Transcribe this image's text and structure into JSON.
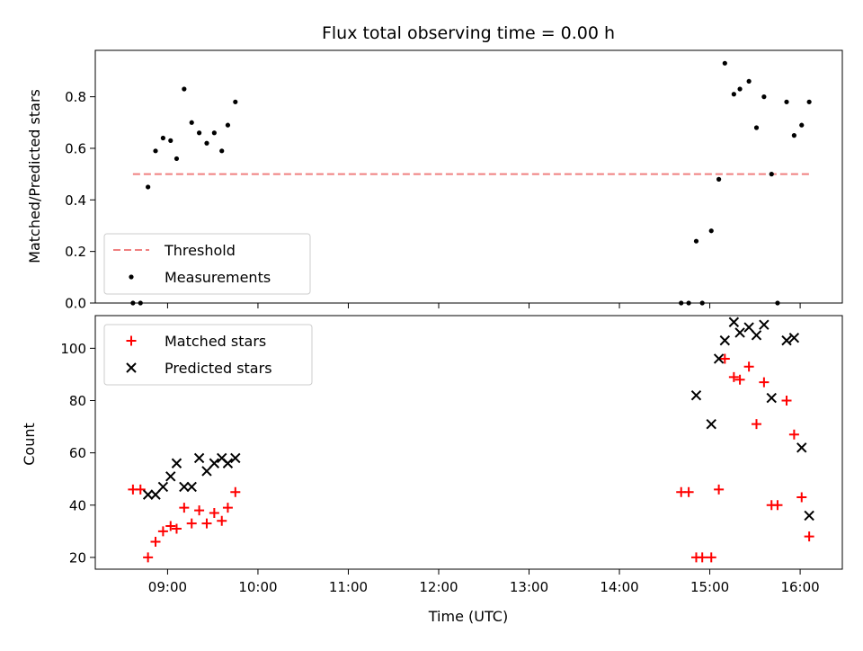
{
  "chart_data": [
    {
      "type": "scatter",
      "title": "Flux total observing time = 0.00 h",
      "xlabel": "",
      "ylabel": "Matched/Predicted stars",
      "xlim": [
        "08:12",
        "16:28"
      ],
      "ylim": [
        0,
        0.98
      ],
      "y_ticks": [
        "0.0",
        "0.2",
        "0.4",
        "0.6",
        "0.8"
      ],
      "x_ticks": [
        "09:00",
        "10:00",
        "11:00",
        "12:00",
        "13:00",
        "14:00",
        "15:00",
        "16:00"
      ],
      "legend": {
        "placement": "lower-left",
        "entries": [
          "Threshold",
          "Measurements"
        ]
      },
      "series": [
        {
          "name": "Threshold",
          "kind": "dashed-line",
          "color": "#f08080",
          "points": [
            {
              "x": "08:37",
              "y": 0.5
            },
            {
              "x": "16:06",
              "y": 0.5
            }
          ]
        },
        {
          "name": "Measurements",
          "kind": "dot",
          "color": "#000000",
          "points": [
            {
              "x": "08:37",
              "y": 0.0
            },
            {
              "x": "08:42",
              "y": 0.0
            },
            {
              "x": "08:47",
              "y": 0.45
            },
            {
              "x": "08:52",
              "y": 0.59
            },
            {
              "x": "08:57",
              "y": 0.64
            },
            {
              "x": "09:02",
              "y": 0.63
            },
            {
              "x": "09:06",
              "y": 0.56
            },
            {
              "x": "09:11",
              "y": 0.83
            },
            {
              "x": "09:16",
              "y": 0.7
            },
            {
              "x": "09:21",
              "y": 0.66
            },
            {
              "x": "09:26",
              "y": 0.62
            },
            {
              "x": "09:31",
              "y": 0.66
            },
            {
              "x": "09:36",
              "y": 0.59
            },
            {
              "x": "09:40",
              "y": 0.69
            },
            {
              "x": "09:45",
              "y": 0.78
            },
            {
              "x": "14:41",
              "y": 0.0
            },
            {
              "x": "14:46",
              "y": 0.0
            },
            {
              "x": "14:51",
              "y": 0.24
            },
            {
              "x": "14:55",
              "y": 0.0
            },
            {
              "x": "15:01",
              "y": 0.28
            },
            {
              "x": "15:06",
              "y": 0.48
            },
            {
              "x": "15:10",
              "y": 0.93
            },
            {
              "x": "15:16",
              "y": 0.81
            },
            {
              "x": "15:20",
              "y": 0.83
            },
            {
              "x": "15:26",
              "y": 0.86
            },
            {
              "x": "15:31",
              "y": 0.68
            },
            {
              "x": "15:36",
              "y": 0.8
            },
            {
              "x": "15:41",
              "y": 0.5
            },
            {
              "x": "15:45",
              "y": 0.0
            },
            {
              "x": "15:51",
              "y": 0.78
            },
            {
              "x": "15:56",
              "y": 0.65
            },
            {
              "x": "16:01",
              "y": 0.69
            },
            {
              "x": "16:06",
              "y": 0.78
            }
          ]
        }
      ]
    },
    {
      "type": "scatter",
      "title": "",
      "xlabel": "Time (UTC)",
      "ylabel": "Count",
      "xlim": [
        "08:12",
        "16:28"
      ],
      "ylim": [
        15.5,
        112.5
      ],
      "y_ticks": [
        "20",
        "40",
        "60",
        "80",
        "100"
      ],
      "x_ticks": [
        "09:00",
        "10:00",
        "11:00",
        "12:00",
        "13:00",
        "14:00",
        "15:00",
        "16:00"
      ],
      "legend": {
        "placement": "top-left",
        "entries": [
          "Matched stars",
          "Predicted stars"
        ]
      },
      "series": [
        {
          "name": "Matched stars",
          "kind": "plus",
          "color": "#ff0000",
          "points": [
            {
              "x": "08:37",
              "y": 46
            },
            {
              "x": "08:42",
              "y": 46
            },
            {
              "x": "08:47",
              "y": 20
            },
            {
              "x": "08:52",
              "y": 26
            },
            {
              "x": "08:57",
              "y": 30
            },
            {
              "x": "09:02",
              "y": 32
            },
            {
              "x": "09:06",
              "y": 31
            },
            {
              "x": "09:11",
              "y": 39
            },
            {
              "x": "09:16",
              "y": 33
            },
            {
              "x": "09:21",
              "y": 38
            },
            {
              "x": "09:26",
              "y": 33
            },
            {
              "x": "09:31",
              "y": 37
            },
            {
              "x": "09:36",
              "y": 34
            },
            {
              "x": "09:40",
              "y": 39
            },
            {
              "x": "09:45",
              "y": 45
            },
            {
              "x": "14:41",
              "y": 45
            },
            {
              "x": "14:46",
              "y": 45
            },
            {
              "x": "14:51",
              "y": 20
            },
            {
              "x": "14:55",
              "y": 20
            },
            {
              "x": "15:01",
              "y": 20
            },
            {
              "x": "15:06",
              "y": 46
            },
            {
              "x": "15:10",
              "y": 96
            },
            {
              "x": "15:16",
              "y": 89
            },
            {
              "x": "15:20",
              "y": 88
            },
            {
              "x": "15:26",
              "y": 93
            },
            {
              "x": "15:31",
              "y": 71
            },
            {
              "x": "15:36",
              "y": 87
            },
            {
              "x": "15:41",
              "y": 40
            },
            {
              "x": "15:45",
              "y": 40
            },
            {
              "x": "15:51",
              "y": 80
            },
            {
              "x": "15:56",
              "y": 67
            },
            {
              "x": "16:01",
              "y": 43
            },
            {
              "x": "16:06",
              "y": 28
            }
          ]
        },
        {
          "name": "Predicted stars",
          "kind": "cross",
          "color": "#000000",
          "points": [
            {
              "x": "08:47",
              "y": 44
            },
            {
              "x": "08:52",
              "y": 44
            },
            {
              "x": "08:57",
              "y": 47
            },
            {
              "x": "09:02",
              "y": 51
            },
            {
              "x": "09:06",
              "y": 56
            },
            {
              "x": "09:11",
              "y": 47
            },
            {
              "x": "09:16",
              "y": 47
            },
            {
              "x": "09:21",
              "y": 58
            },
            {
              "x": "09:26",
              "y": 53
            },
            {
              "x": "09:31",
              "y": 56
            },
            {
              "x": "09:36",
              "y": 58
            },
            {
              "x": "09:40",
              "y": 56
            },
            {
              "x": "09:45",
              "y": 58
            },
            {
              "x": "14:51",
              "y": 82
            },
            {
              "x": "15:01",
              "y": 71
            },
            {
              "x": "15:06",
              "y": 96
            },
            {
              "x": "15:10",
              "y": 103
            },
            {
              "x": "15:16",
              "y": 110
            },
            {
              "x": "15:20",
              "y": 106
            },
            {
              "x": "15:26",
              "y": 108
            },
            {
              "x": "15:31",
              "y": 105
            },
            {
              "x": "15:36",
              "y": 109
            },
            {
              "x": "15:41",
              "y": 81
            },
            {
              "x": "15:51",
              "y": 103
            },
            {
              "x": "15:56",
              "y": 104
            },
            {
              "x": "16:01",
              "y": 62
            },
            {
              "x": "16:06",
              "y": 36
            }
          ]
        }
      ]
    }
  ]
}
